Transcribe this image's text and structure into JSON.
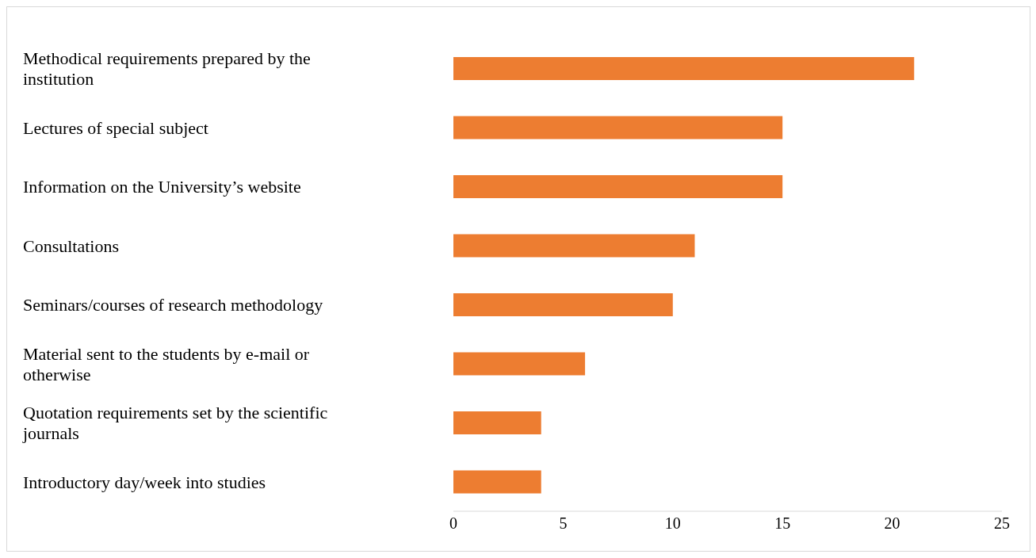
{
  "chart_data": {
    "type": "bar",
    "orientation": "horizontal",
    "categories": [
      "Methodical requirements prepared by the institution",
      "Lectures of special subject",
      "Information on the University’s website",
      "Consultations",
      "Seminars/courses of research methodology",
      "Material sent to the students by e-mail or otherwise",
      "Quotation requirements set by the scientific journals",
      "Introductory day/week into studies"
    ],
    "values": [
      21,
      15,
      15,
      11,
      10,
      6,
      4,
      4
    ],
    "color": "#ed7d31",
    "xlim": [
      0,
      25
    ],
    "xticks": [
      0,
      5,
      10,
      15,
      20,
      25
    ],
    "grid": false,
    "legend": false
  }
}
